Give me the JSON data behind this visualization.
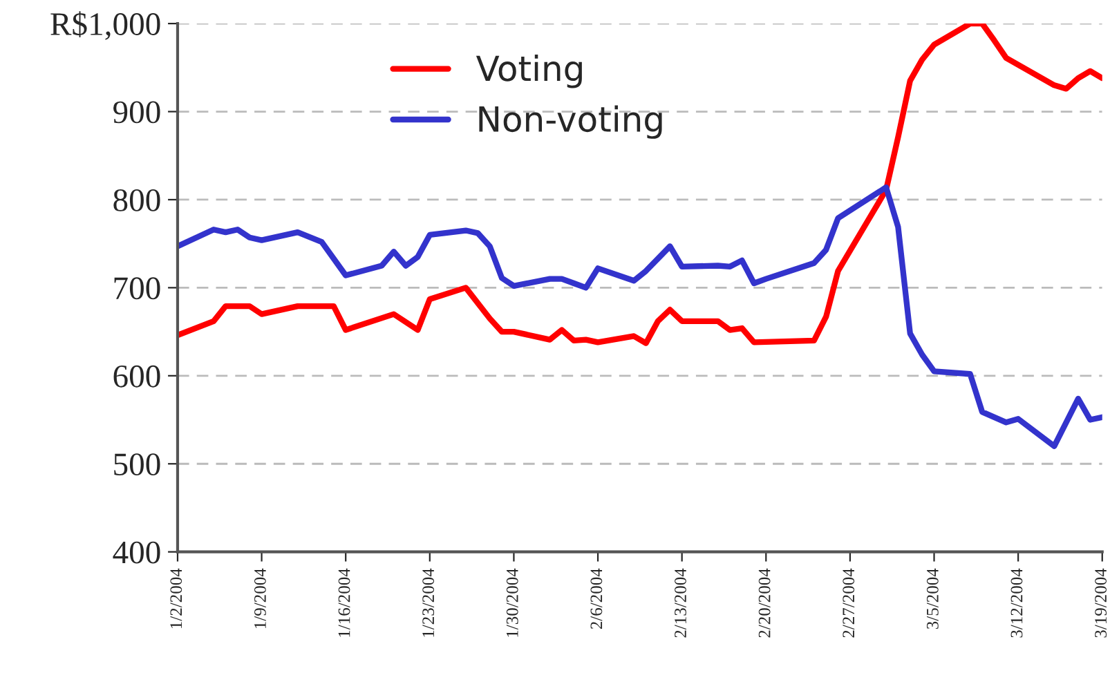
{
  "chart_data": {
    "type": "line",
    "legend": "top",
    "grid": "y",
    "line_style": "solid",
    "xlim": [
      "2004-01-02",
      "2004-03-19"
    ],
    "xticks": [
      {
        "value": "2004-01-02",
        "label": "1/2/2004"
      },
      {
        "value": "2004-01-09",
        "label": "1/9/2004"
      },
      {
        "value": "2004-01-16",
        "label": "1/16/2004"
      },
      {
        "value": "2004-01-23",
        "label": "1/23/2004"
      },
      {
        "value": "2004-01-30",
        "label": "1/30/2004"
      },
      {
        "value": "2004-02-06",
        "label": "2/6/2004"
      },
      {
        "value": "2004-02-13",
        "label": "2/13/2004"
      },
      {
        "value": "2004-02-20",
        "label": "2/20/2004"
      },
      {
        "value": "2004-02-27",
        "label": "2/27/2004"
      },
      {
        "value": "2004-03-05",
        "label": "3/5/2004"
      },
      {
        "value": "2004-03-12",
        "label": "3/12/2004"
      },
      {
        "value": "2004-03-19",
        "label": "3/19/2004"
      }
    ],
    "ylim": [
      400,
      1000
    ],
    "yticks": [
      400,
      500,
      600,
      700,
      800,
      900,
      {
        "value": 1000,
        "label": "R$1,000"
      }
    ],
    "series": [
      {
        "name": "Voting",
        "color": "#ff0000",
        "x": [
          "2004-01-02",
          "2004-01-05",
          "2004-01-06",
          "2004-01-08",
          "2004-01-09",
          "2004-01-12",
          "2004-01-15",
          "2004-01-16",
          "2004-01-20",
          "2004-01-22",
          "2004-01-23",
          "2004-01-26",
          "2004-01-28",
          "2004-01-29",
          "2004-01-30",
          "2004-02-02",
          "2004-02-03",
          "2004-02-04",
          "2004-02-05",
          "2004-02-06",
          "2004-02-09",
          "2004-02-10",
          "2004-02-11",
          "2004-02-12",
          "2004-02-13",
          "2004-02-16",
          "2004-02-17",
          "2004-02-18",
          "2004-02-19",
          "2004-02-24",
          "2004-02-25",
          "2004-02-26",
          "2004-03-01",
          "2004-03-02",
          "2004-03-03",
          "2004-03-04",
          "2004-03-05",
          "2004-03-08",
          "2004-03-09",
          "2004-03-10",
          "2004-03-11",
          "2004-03-15",
          "2004-03-16",
          "2004-03-17",
          "2004-03-18",
          "2004-03-19"
        ],
        "values": [
          646,
          662,
          679,
          679,
          670,
          679,
          679,
          652,
          670,
          652,
          687,
          700,
          665,
          650,
          650,
          641,
          652,
          640,
          641,
          638,
          645,
          637,
          662,
          675,
          662,
          662,
          652,
          654,
          638,
          640,
          667,
          719,
          811,
          871,
          935,
          959,
          976,
          1000,
          1000,
          981,
          961,
          930,
          926,
          938,
          946,
          938
        ]
      },
      {
        "name": "Non-voting",
        "color": "#3333cc",
        "x": [
          "2004-01-02",
          "2004-01-05",
          "2004-01-06",
          "2004-01-07",
          "2004-01-08",
          "2004-01-09",
          "2004-01-12",
          "2004-01-14",
          "2004-01-16",
          "2004-01-19",
          "2004-01-20",
          "2004-01-21",
          "2004-01-22",
          "2004-01-23",
          "2004-01-26",
          "2004-01-27",
          "2004-01-28",
          "2004-01-29",
          "2004-01-30",
          "2004-02-02",
          "2004-02-03",
          "2004-02-04",
          "2004-02-05",
          "2004-02-06",
          "2004-02-09",
          "2004-02-10",
          "2004-02-12",
          "2004-02-13",
          "2004-02-16",
          "2004-02-17",
          "2004-02-18",
          "2004-02-19",
          "2004-02-20",
          "2004-02-24",
          "2004-02-25",
          "2004-02-26",
          "2004-03-01",
          "2004-03-02",
          "2004-03-03",
          "2004-03-04",
          "2004-03-05",
          "2004-03-08",
          "2004-03-09",
          "2004-03-11",
          "2004-03-12",
          "2004-03-15",
          "2004-03-17",
          "2004-03-18",
          "2004-03-19"
        ],
        "values": [
          747,
          766,
          763,
          766,
          757,
          754,
          763,
          752,
          714,
          725,
          741,
          725,
          735,
          760,
          765,
          762,
          747,
          711,
          702,
          710,
          710,
          705,
          700,
          722,
          708,
          719,
          747,
          724,
          725,
          724,
          731,
          705,
          710,
          728,
          743,
          779,
          814,
          769,
          648,
          624,
          605,
          602,
          559,
          547,
          551,
          520,
          574,
          550,
          553
        ]
      }
    ]
  }
}
